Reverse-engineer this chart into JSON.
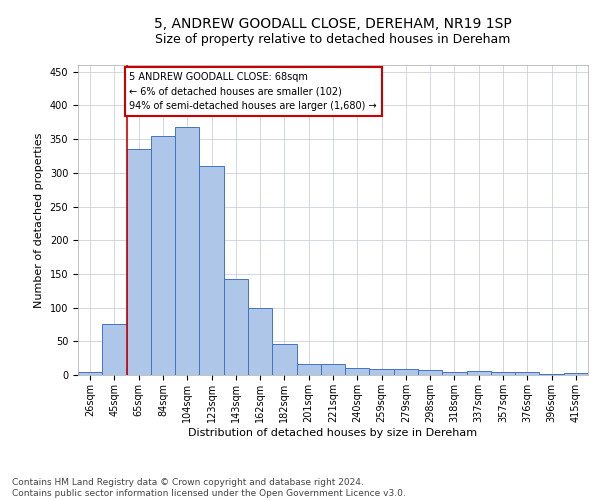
{
  "title": "5, ANDREW GOODALL CLOSE, DEREHAM, NR19 1SP",
  "subtitle": "Size of property relative to detached houses in Dereham",
  "xlabel": "Distribution of detached houses by size in Dereham",
  "ylabel": "Number of detached properties",
  "categories": [
    "26sqm",
    "45sqm",
    "65sqm",
    "84sqm",
    "104sqm",
    "123sqm",
    "143sqm",
    "162sqm",
    "182sqm",
    "201sqm",
    "221sqm",
    "240sqm",
    "259sqm",
    "279sqm",
    "298sqm",
    "318sqm",
    "337sqm",
    "357sqm",
    "376sqm",
    "396sqm",
    "415sqm"
  ],
  "values": [
    5,
    75,
    335,
    355,
    368,
    310,
    143,
    100,
    46,
    16,
    16,
    11,
    9,
    9,
    8,
    5,
    6,
    4,
    4,
    1,
    3
  ],
  "bar_color": "#aec6e8",
  "bar_edge_color": "#4472c4",
  "vline_index": 2,
  "annotation_text_line1": "5 ANDREW GOODALL CLOSE: 68sqm",
  "annotation_text_line2": "← 6% of detached houses are smaller (102)",
  "annotation_text_line3": "94% of semi-detached houses are larger (1,680) →",
  "annotation_box_color": "#ffffff",
  "annotation_box_edge_color": "#cc0000",
  "vline_color": "#cc0000",
  "ylim": [
    0,
    460
  ],
  "yticks": [
    0,
    50,
    100,
    150,
    200,
    250,
    300,
    350,
    400,
    450
  ],
  "footer_line1": "Contains HM Land Registry data © Crown copyright and database right 2024.",
  "footer_line2": "Contains public sector information licensed under the Open Government Licence v3.0.",
  "title_fontsize": 10,
  "subtitle_fontsize": 9,
  "ylabel_fontsize": 8,
  "xlabel_fontsize": 8,
  "tick_fontsize": 7,
  "annotation_fontsize": 7,
  "footer_fontsize": 6.5,
  "background_color": "#ffffff",
  "grid_color": "#c0c8d8"
}
